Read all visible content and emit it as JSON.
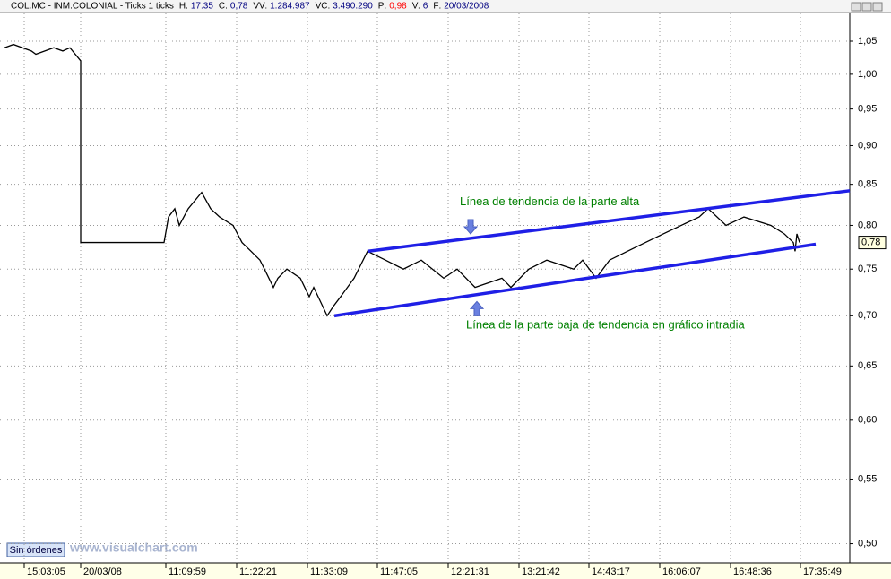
{
  "header": {
    "symbol": "COL.MC - INM.COLONIAL - Ticks 1 ticks",
    "fields": [
      {
        "label": "H:",
        "value": "17:35",
        "color": "#000080"
      },
      {
        "label": "C:",
        "value": "0,78",
        "color": "#000080"
      },
      {
        "label": "VV:",
        "value": "1.284.987",
        "color": "#000080"
      },
      {
        "label": "VC:",
        "value": "3.490.290",
        "color": "#000080"
      },
      {
        "label": "P:",
        "value": "0,98",
        "color": "#ff0000"
      },
      {
        "label": "V:",
        "value": "6",
        "color": "#000080"
      },
      {
        "label": "F:",
        "value": "20/03/2008",
        "color": "#000080"
      }
    ]
  },
  "status_button": "Sin órdenes",
  "watermark": "www.visualchart.com",
  "chart_data": {
    "type": "line",
    "log_scale": true,
    "grid": true,
    "xlim": [
      0,
      948
    ],
    "ylim": [
      0.486,
      1.094
    ],
    "xticks": [
      {
        "value": 27,
        "label": "15:03:05"
      },
      {
        "value": 90,
        "label": "20/03/08"
      },
      {
        "value": 185,
        "label": "11:09:59"
      },
      {
        "value": 264,
        "label": "11:22:21"
      },
      {
        "value": 343,
        "label": "11:33:09"
      },
      {
        "value": 421,
        "label": "11:47:05"
      },
      {
        "value": 500,
        "label": "12:21:31"
      },
      {
        "value": 579,
        "label": "13:21:42"
      },
      {
        "value": 657,
        "label": "14:43:17"
      },
      {
        "value": 736,
        "label": "16:06:07"
      },
      {
        "value": 815,
        "label": "16:48:36"
      },
      {
        "value": 893,
        "label": "17:35:49"
      }
    ],
    "yticks": [
      {
        "value": 1.05,
        "label": "1,05"
      },
      {
        "value": 1.0,
        "label": "1,00"
      },
      {
        "value": 0.95,
        "label": "0,95"
      },
      {
        "value": 0.9,
        "label": "0,90"
      },
      {
        "value": 0.85,
        "label": "0,85"
      },
      {
        "value": 0.8,
        "label": "0,80"
      },
      {
        "value": 0.75,
        "label": "0,75"
      },
      {
        "value": 0.7,
        "label": "0,70"
      },
      {
        "value": 0.65,
        "label": "0,65"
      },
      {
        "value": 0.6,
        "label": "0,60"
      },
      {
        "value": 0.55,
        "label": "0,55"
      },
      {
        "value": 0.5,
        "label": "0,50"
      }
    ],
    "series": [
      {
        "color": "#000000",
        "x": [
          5,
          15,
          25,
          35,
          40,
          50,
          60,
          70,
          78,
          90,
          90,
          160,
          183,
          188,
          195,
          200,
          210,
          225,
          235,
          245,
          260,
          270,
          280,
          290,
          295,
          305,
          310,
          320,
          335,
          345,
          350,
          365,
          372,
          380,
          395,
          410,
          430,
          450,
          470,
          495,
          510,
          530,
          560,
          570,
          590,
          610,
          640,
          650,
          665,
          680,
          700,
          720,
          740,
          760,
          780,
          790,
          810,
          830,
          860,
          875,
          885,
          887,
          889,
          892
        ],
        "values": [
          1.04,
          1.045,
          1.04,
          1.035,
          1.03,
          1.035,
          1.04,
          1.035,
          1.04,
          1.02,
          0.78,
          0.78,
          0.78,
          0.81,
          0.82,
          0.8,
          0.82,
          0.84,
          0.82,
          0.81,
          0.8,
          0.78,
          0.77,
          0.76,
          0.75,
          0.73,
          0.74,
          0.75,
          0.74,
          0.72,
          0.73,
          0.7,
          0.71,
          0.72,
          0.74,
          0.77,
          0.76,
          0.75,
          0.76,
          0.74,
          0.75,
          0.73,
          0.74,
          0.73,
          0.75,
          0.76,
          0.75,
          0.76,
          0.74,
          0.76,
          0.77,
          0.78,
          0.79,
          0.8,
          0.81,
          0.82,
          0.8,
          0.81,
          0.8,
          0.79,
          0.78,
          0.77,
          0.79,
          0.78
        ]
      }
    ],
    "trendlines": [
      {
        "color": "#1f1fe6",
        "x": [
          410,
          948
        ],
        "values": [
          0.77,
          0.842
        ]
      },
      {
        "color": "#1f1fe6",
        "x": [
          373,
          910
        ],
        "values": [
          0.7,
          0.778
        ]
      }
    ],
    "annotations": [
      {
        "text": "Línea de tendencia de la parte alta",
        "x": 513,
        "value": 0.828,
        "arrow_value": 0.79
      },
      {
        "text": "Línea de la parte baja de tendencia en gráfico intradia",
        "x": 520,
        "value": 0.69,
        "arrow_value": 0.715
      }
    ],
    "last_label": {
      "value": 0.78,
      "label": "0,78"
    }
  }
}
